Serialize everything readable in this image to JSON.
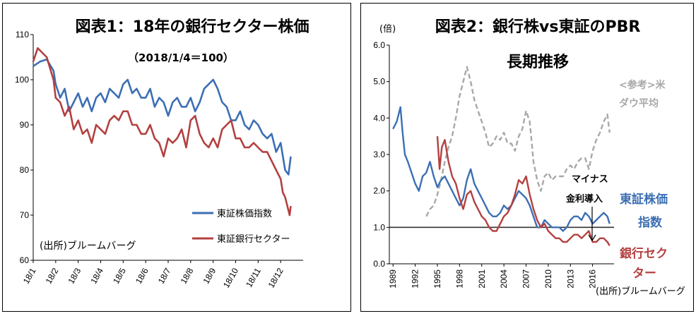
{
  "chart_data": [
    {
      "type": "line",
      "title": "図表1：18年の銀行セクター株価",
      "subtitle": "（2018/1/4＝100）",
      "source": "(出所)ブルームバーグ",
      "ylim": [
        60,
        110
      ],
      "yticks": [
        "60",
        "70",
        "80",
        "90",
        "100",
        "110"
      ],
      "xticks": [
        "18/1",
        "18/2",
        "18/3",
        "18/4",
        "18/5",
        "18/6",
        "18/7",
        "18/8",
        "18/9",
        "18/10",
        "18/11",
        "18/12"
      ],
      "legend_position": "bottom-right",
      "series": [
        {
          "name": "東証株価指数",
          "color": "#3c6fb4",
          "x": [
            0,
            0.3,
            0.6,
            0.9,
            1.0,
            1.2,
            1.4,
            1.6,
            1.8,
            2.0,
            2.2,
            2.4,
            2.6,
            2.8,
            3.0,
            3.2,
            3.4,
            3.6,
            3.8,
            4.0,
            4.2,
            4.4,
            4.6,
            4.8,
            5.0,
            5.2,
            5.4,
            5.6,
            5.8,
            6.0,
            6.2,
            6.4,
            6.6,
            6.8,
            7.0,
            7.2,
            7.4,
            7.6,
            7.8,
            8.0,
            8.2,
            8.4,
            8.6,
            8.8,
            9.0,
            9.2,
            9.4,
            9.6,
            9.8,
            10.0,
            10.2,
            10.4,
            10.6,
            10.8,
            11.0,
            11.2,
            11.35,
            11.45
          ],
          "y": [
            103,
            104,
            104.5,
            102,
            99,
            96,
            98,
            93,
            95,
            97,
            94,
            96,
            93,
            96,
            97,
            95,
            98,
            97,
            96,
            99,
            100,
            97,
            98,
            96,
            96,
            98,
            94,
            96,
            95,
            92,
            95,
            96,
            94,
            94,
            96,
            93,
            95,
            98,
            99,
            100,
            98,
            95,
            94,
            91,
            91,
            93,
            90,
            89,
            91,
            90,
            88,
            87,
            88,
            84,
            86,
            80,
            79,
            83
          ]
        },
        {
          "name": "東証銀行セクター",
          "color": "#b44040",
          "x": [
            0,
            0.2,
            0.4,
            0.6,
            0.9,
            1.0,
            1.2,
            1.4,
            1.6,
            1.8,
            2.0,
            2.2,
            2.4,
            2.6,
            2.8,
            3.0,
            3.2,
            3.4,
            3.6,
            3.8,
            4.0,
            4.2,
            4.4,
            4.6,
            4.8,
            5.0,
            5.2,
            5.4,
            5.6,
            5.8,
            6.0,
            6.2,
            6.4,
            6.6,
            6.8,
            7.0,
            7.2,
            7.4,
            7.6,
            7.8,
            8.0,
            8.2,
            8.4,
            8.6,
            8.8,
            9.0,
            9.2,
            9.4,
            9.6,
            9.8,
            10.0,
            10.2,
            10.4,
            10.6,
            10.8,
            11.0,
            11.1,
            11.2,
            11.3,
            11.4,
            11.45
          ],
          "y": [
            104,
            107,
            106,
            105,
            100,
            96,
            95,
            92,
            94,
            89,
            91,
            88,
            89,
            86,
            90,
            89,
            88,
            91,
            92,
            91,
            93,
            93,
            90,
            90,
            88,
            88,
            90,
            87,
            86,
            83,
            87,
            86,
            87,
            89,
            85,
            91,
            92,
            88,
            86,
            85,
            87,
            85,
            89,
            90,
            91,
            87,
            87,
            85,
            85,
            86,
            85,
            84,
            84,
            82,
            80,
            78,
            75,
            74,
            72,
            70,
            72
          ]
        }
      ]
    },
    {
      "type": "line",
      "title": "図表2：銀行株vs東証のPBR",
      "title_line2": "長期推移",
      "yunit": "(倍)",
      "source": "(出所)ブルームバーグ",
      "ylim": [
        0,
        6
      ],
      "yticks": [
        "0.0",
        "1.0",
        "2.0",
        "3.0",
        "4.0",
        "5.0",
        "6.0"
      ],
      "xticks": [
        "1989",
        "1992",
        "1995",
        "1998",
        "2001",
        "2004",
        "2007",
        "2010",
        "2013",
        "2016"
      ],
      "reference_line": 1.0,
      "annotation": [
        "マイナス",
        "金利導入"
      ],
      "series": [
        {
          "name": "<参考>米\nダウ平均",
          "label_lines": [
            "<参考>米",
            "ダウ平均"
          ],
          "color": "#a8a8a8",
          "dashed": true,
          "x": [
            1993.5,
            1994,
            1994.5,
            1995,
            1995.5,
            1996,
            1996.5,
            1997,
            1997.5,
            1998,
            1998.5,
            1999,
            1999.5,
            2000,
            2000.5,
            2001,
            2001.5,
            2002,
            2002.5,
            2003,
            2003.5,
            2004,
            2004.5,
            2005,
            2005.5,
            2006,
            2006.5,
            2007,
            2007.5,
            2008,
            2008.5,
            2009,
            2009.5,
            2010,
            2010.5,
            2011,
            2011.5,
            2012,
            2012.5,
            2013,
            2013.5,
            2014,
            2014.5,
            2015,
            2015.5,
            2016,
            2016.5,
            2017,
            2017.5,
            2018,
            2018.3
          ],
          "y": [
            1.3,
            1.5,
            1.6,
            1.9,
            2.3,
            2.8,
            3.2,
            3.5,
            4.0,
            4.6,
            5.0,
            5.4,
            5.0,
            4.5,
            4.2,
            3.9,
            3.6,
            3.2,
            3.3,
            3.5,
            3.4,
            3.6,
            3.3,
            3.3,
            3.1,
            3.5,
            3.7,
            4.2,
            3.9,
            2.8,
            2.3,
            2.0,
            2.4,
            2.5,
            2.3,
            2.4,
            2.4,
            2.4,
            2.6,
            2.7,
            2.6,
            2.8,
            2.9,
            2.9,
            2.6,
            3.1,
            3.4,
            3.6,
            3.9,
            4.1,
            3.6
          ]
        },
        {
          "name": "東証株価指数",
          "label_lines": [
            "東証株価",
            "指数"
          ],
          "color": "#3c6fb4",
          "x": [
            1989,
            1989.5,
            1990,
            1990.3,
            1990.6,
            1991,
            1991.5,
            1992,
            1992.5,
            1993,
            1993.5,
            1994,
            1994.5,
            1995,
            1995.5,
            1996,
            1996.5,
            1997,
            1997.5,
            1998,
            1998.5,
            1999,
            1999.5,
            2000,
            2000.5,
            2001,
            2001.5,
            2002,
            2002.5,
            2003,
            2003.5,
            2004,
            2004.5,
            2005,
            2005.5,
            2006,
            2006.5,
            2007,
            2007.5,
            2008,
            2008.5,
            2009,
            2009.5,
            2010,
            2010.5,
            2011,
            2011.5,
            2012,
            2012.5,
            2013,
            2013.5,
            2014,
            2014.5,
            2015,
            2015.5,
            2016,
            2016.5,
            2017,
            2017.5,
            2018,
            2018.3
          ],
          "y": [
            3.7,
            3.9,
            4.3,
            3.6,
            3.0,
            2.8,
            2.5,
            2.2,
            2.0,
            2.4,
            2.5,
            2.8,
            2.4,
            2.1,
            2.3,
            2.4,
            2.2,
            2.0,
            1.8,
            1.6,
            1.8,
            2.3,
            2.6,
            2.2,
            2.0,
            1.8,
            1.6,
            1.4,
            1.3,
            1.3,
            1.4,
            1.6,
            1.5,
            1.6,
            1.8,
            2.0,
            1.9,
            1.8,
            1.6,
            1.3,
            1.0,
            1.0,
            1.2,
            1.1,
            1.0,
            1.0,
            1.0,
            0.9,
            1.0,
            1.2,
            1.3,
            1.3,
            1.2,
            1.4,
            1.3,
            1.1,
            1.2,
            1.3,
            1.4,
            1.3,
            1.1
          ]
        },
        {
          "name": "銀行セクター",
          "label_lines": [
            "銀行セク",
            "ター"
          ],
          "color": "#b44040",
          "x": [
            1995,
            1995.3,
            1995.6,
            1996,
            1996.5,
            1997,
            1997.5,
            1998,
            1998.5,
            1999,
            1999.5,
            2000,
            2000.5,
            2001,
            2001.5,
            2002,
            2002.5,
            2003,
            2003.5,
            2004,
            2004.5,
            2005,
            2005.5,
            2006,
            2006.5,
            2007,
            2007.5,
            2008,
            2008.5,
            2009,
            2009.5,
            2010,
            2010.5,
            2011,
            2011.5,
            2012,
            2012.5,
            2013,
            2013.5,
            2014,
            2014.5,
            2015,
            2015.5,
            2016,
            2016.5,
            2017,
            2017.5,
            2018,
            2018.3
          ],
          "y": [
            3.5,
            2.6,
            3.2,
            3.4,
            2.8,
            2.4,
            2.2,
            1.8,
            1.5,
            1.9,
            2.0,
            1.7,
            1.5,
            1.3,
            1.2,
            1.0,
            0.9,
            0.9,
            1.1,
            1.3,
            1.4,
            1.6,
            1.9,
            2.3,
            2.2,
            2.4,
            1.9,
            1.5,
            1.2,
            1.0,
            1.1,
            0.9,
            0.8,
            0.7,
            0.7,
            0.6,
            0.6,
            0.7,
            0.8,
            0.8,
            0.7,
            0.8,
            0.9,
            0.6,
            0.6,
            0.7,
            0.7,
            0.6,
            0.5
          ]
        }
      ]
    }
  ]
}
